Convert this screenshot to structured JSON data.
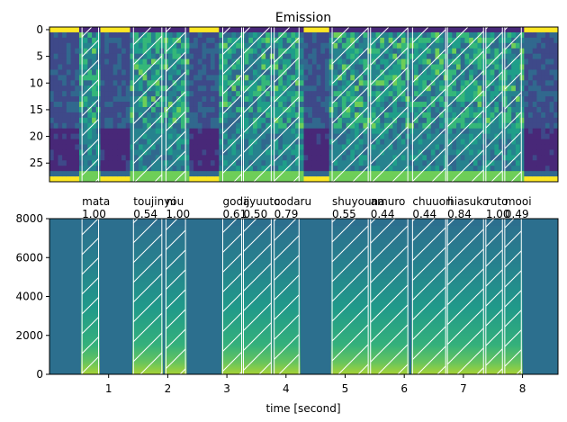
{
  "chart_data": [
    {
      "type": "heatmap",
      "title": "Emission",
      "xlabel": "",
      "ylabel": "",
      "ylim": [
        28.5,
        -0.5
      ],
      "yticks": [
        0,
        5,
        10,
        15,
        20,
        25
      ],
      "xlim": [
        0,
        8.6
      ],
      "note": "emission probabilities per frame; hatched regions mark aligned tokens"
    },
    {
      "type": "heatmap",
      "title": "",
      "xlabel": "time [second]",
      "ylabel": "",
      "ylim": [
        0,
        8000
      ],
      "yticks": [
        0,
        2000,
        4000,
        6000,
        8000
      ],
      "xlim": [
        0,
        8.6
      ],
      "xticks": [
        1,
        2,
        3,
        4,
        5,
        6,
        7,
        8
      ],
      "segments": [
        {
          "start": 0.55,
          "end": 0.83
        },
        {
          "start": 1.42,
          "end": 1.9
        },
        {
          "start": 1.97,
          "end": 2.3
        },
        {
          "start": 2.93,
          "end": 3.25
        },
        {
          "start": 3.28,
          "end": 3.75
        },
        {
          "start": 3.8,
          "end": 4.22
        },
        {
          "start": 4.78,
          "end": 5.39
        },
        {
          "start": 5.43,
          "end": 6.06
        },
        {
          "start": 6.14,
          "end": 6.7
        },
        {
          "start": 6.73,
          "end": 7.34
        },
        {
          "start": 7.38,
          "end": 7.66
        },
        {
          "start": 7.7,
          "end": 7.98
        }
      ],
      "word_labels": [
        {
          "text": "mata",
          "score": "1.00",
          "t": 0.55
        },
        {
          "text": "toujinyou",
          "score": "0.54",
          "t": 1.42
        },
        {
          "text": "ni",
          "score": "1.00",
          "t": 1.97
        },
        {
          "text": "goda",
          "score": "0.61",
          "t": 2.93
        },
        {
          "text": "ijyuuto",
          "score": "0.50",
          "t": 3.28
        },
        {
          "text": "codaru",
          "score": "0.79",
          "t": 3.8
        },
        {
          "text": "shuyouna",
          "score": "0.55",
          "t": 4.78
        },
        {
          "text": "amuro",
          "score": "0.44",
          "t": 5.43
        },
        {
          "text": "chuuori",
          "score": "0.44",
          "t": 6.14
        },
        {
          "text": "hiasuko",
          "score": "0.84",
          "t": 6.73
        },
        {
          "text": "ruto",
          "score": "1.00",
          "t": 7.38
        },
        {
          "text": "mooi",
          "score": "0.49",
          "t": 7.7
        }
      ]
    }
  ]
}
